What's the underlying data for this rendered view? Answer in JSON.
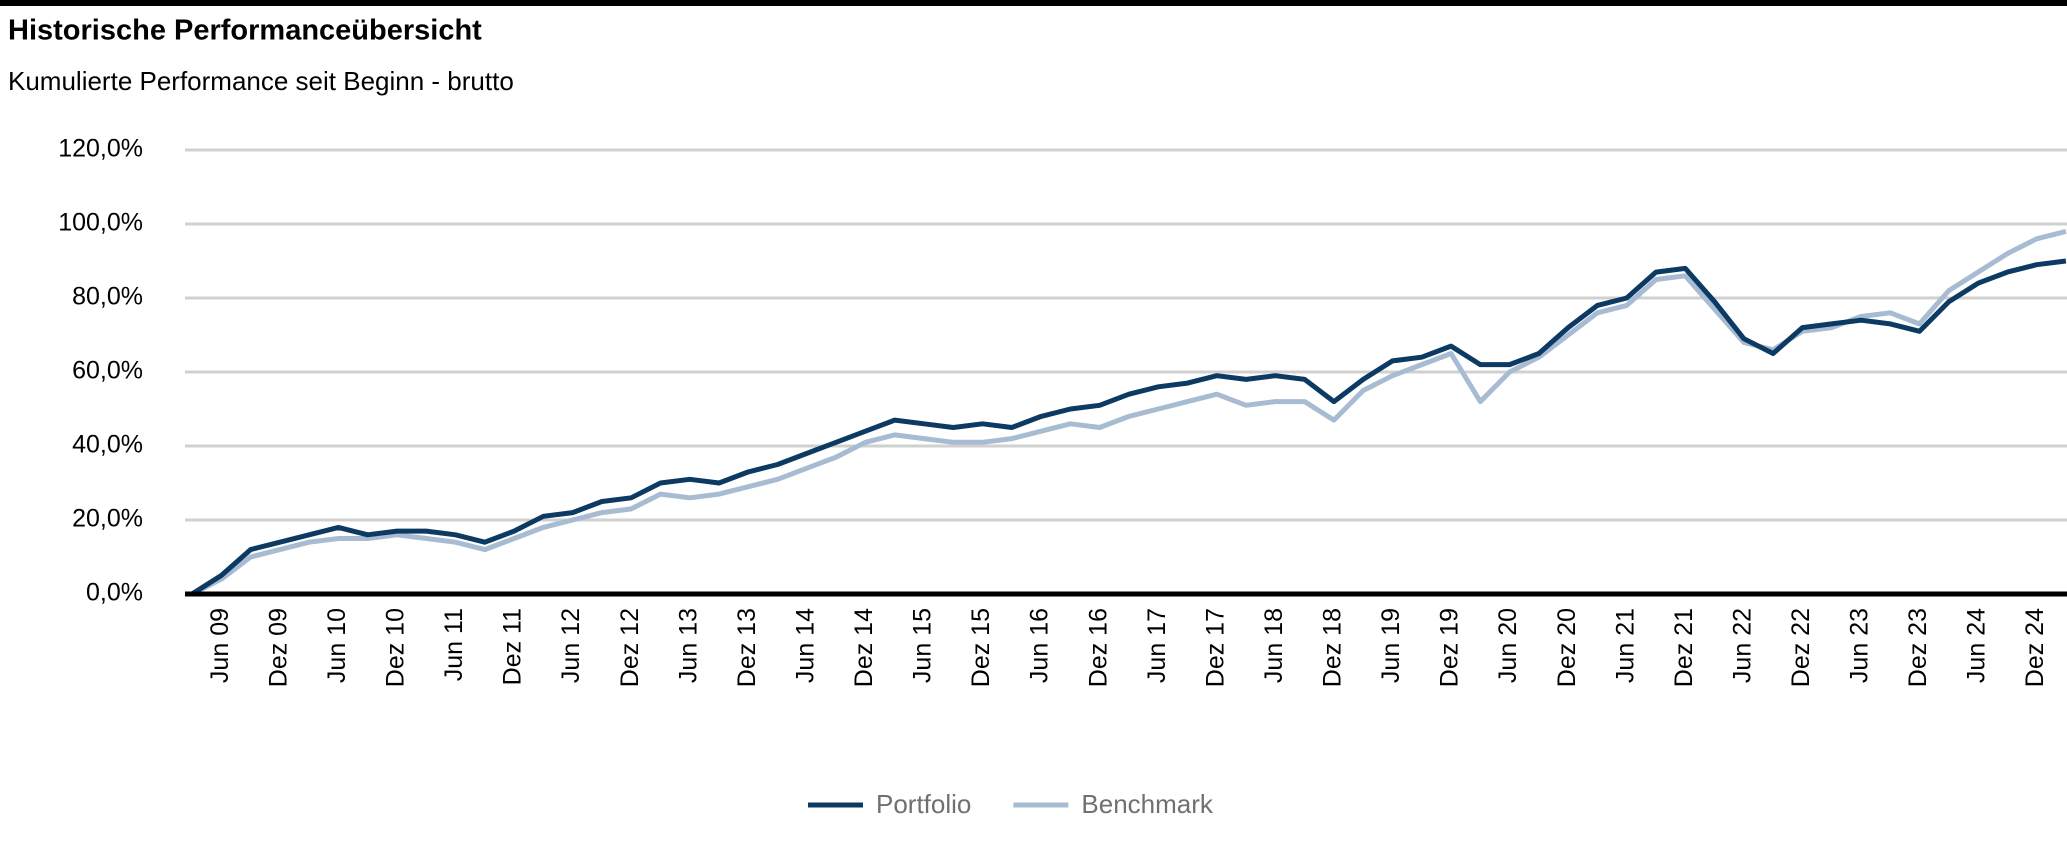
{
  "chart_data": {
    "type": "line",
    "title": "Historische Performanceübersicht",
    "subtitle": "Kumulierte Performance seit Beginn - brutto",
    "categories": [
      null,
      "Jun 09",
      null,
      "Dez 09",
      null,
      "Jun 10",
      null,
      "Dez 10",
      null,
      "Jun 11",
      null,
      "Dez 11",
      null,
      "Jun 12",
      null,
      "Dez 12",
      null,
      "Jun 13",
      null,
      "Dez 13",
      null,
      "Jun 14",
      null,
      "Dez 14",
      null,
      "Jun 15",
      null,
      "Dez 15",
      null,
      "Jun 16",
      null,
      "Dez 16",
      null,
      "Jun 17",
      null,
      "Dez 17",
      null,
      "Jun 18",
      null,
      "Dez 18",
      null,
      "Jun 19",
      null,
      "Dez 19",
      null,
      "Jun 20",
      null,
      "Dez 20",
      null,
      "Jun 21",
      null,
      "Dez 21",
      null,
      "Jun 22",
      null,
      "Dez 22",
      null,
      "Jun 23",
      null,
      "Dez 23",
      null,
      "Jun 24",
      null,
      "Dez 24",
      null
    ],
    "series": [
      {
        "name": "Portfolio",
        "color": "#0d3a63",
        "values": [
          0,
          5,
          12,
          14,
          16,
          18,
          16,
          17,
          17,
          16,
          14,
          17,
          21,
          22,
          25,
          26,
          30,
          31,
          30,
          33,
          35,
          38,
          41,
          44,
          47,
          46,
          45,
          46,
          45,
          48,
          50,
          51,
          54,
          56,
          57,
          59,
          58,
          59,
          58,
          52,
          58,
          63,
          64,
          67,
          62,
          62,
          65,
          72,
          78,
          80,
          87,
          88,
          79,
          69,
          65,
          72,
          73,
          74,
          73,
          71,
          79,
          84,
          87,
          89,
          90
        ]
      },
      {
        "name": "Benchmark",
        "color": "#a7bbd2",
        "values": [
          0,
          4,
          10,
          12,
          14,
          15,
          15,
          16,
          15,
          14,
          12,
          15,
          18,
          20,
          22,
          23,
          27,
          26,
          27,
          29,
          31,
          34,
          37,
          41,
          43,
          42,
          41,
          41,
          42,
          44,
          46,
          45,
          48,
          50,
          52,
          54,
          51,
          52,
          52,
          47,
          55,
          59,
          62,
          65,
          52,
          60,
          64,
          70,
          76,
          78,
          85,
          86,
          77,
          68,
          66,
          71,
          72,
          75,
          76,
          73,
          82,
          87,
          92,
          96,
          98
        ]
      }
    ],
    "ylim": [
      0,
      120
    ],
    "yticks": [
      {
        "value": 0,
        "label": "0,0%"
      },
      {
        "value": 20,
        "label": "20,0%"
      },
      {
        "value": 40,
        "label": "40,0%"
      },
      {
        "value": 60,
        "label": "60,0%"
      },
      {
        "value": 80,
        "label": "80,0%"
      },
      {
        "value": 100,
        "label": "100,0%"
      },
      {
        "value": 120,
        "label": "120,0%"
      }
    ],
    "grid": true
  }
}
